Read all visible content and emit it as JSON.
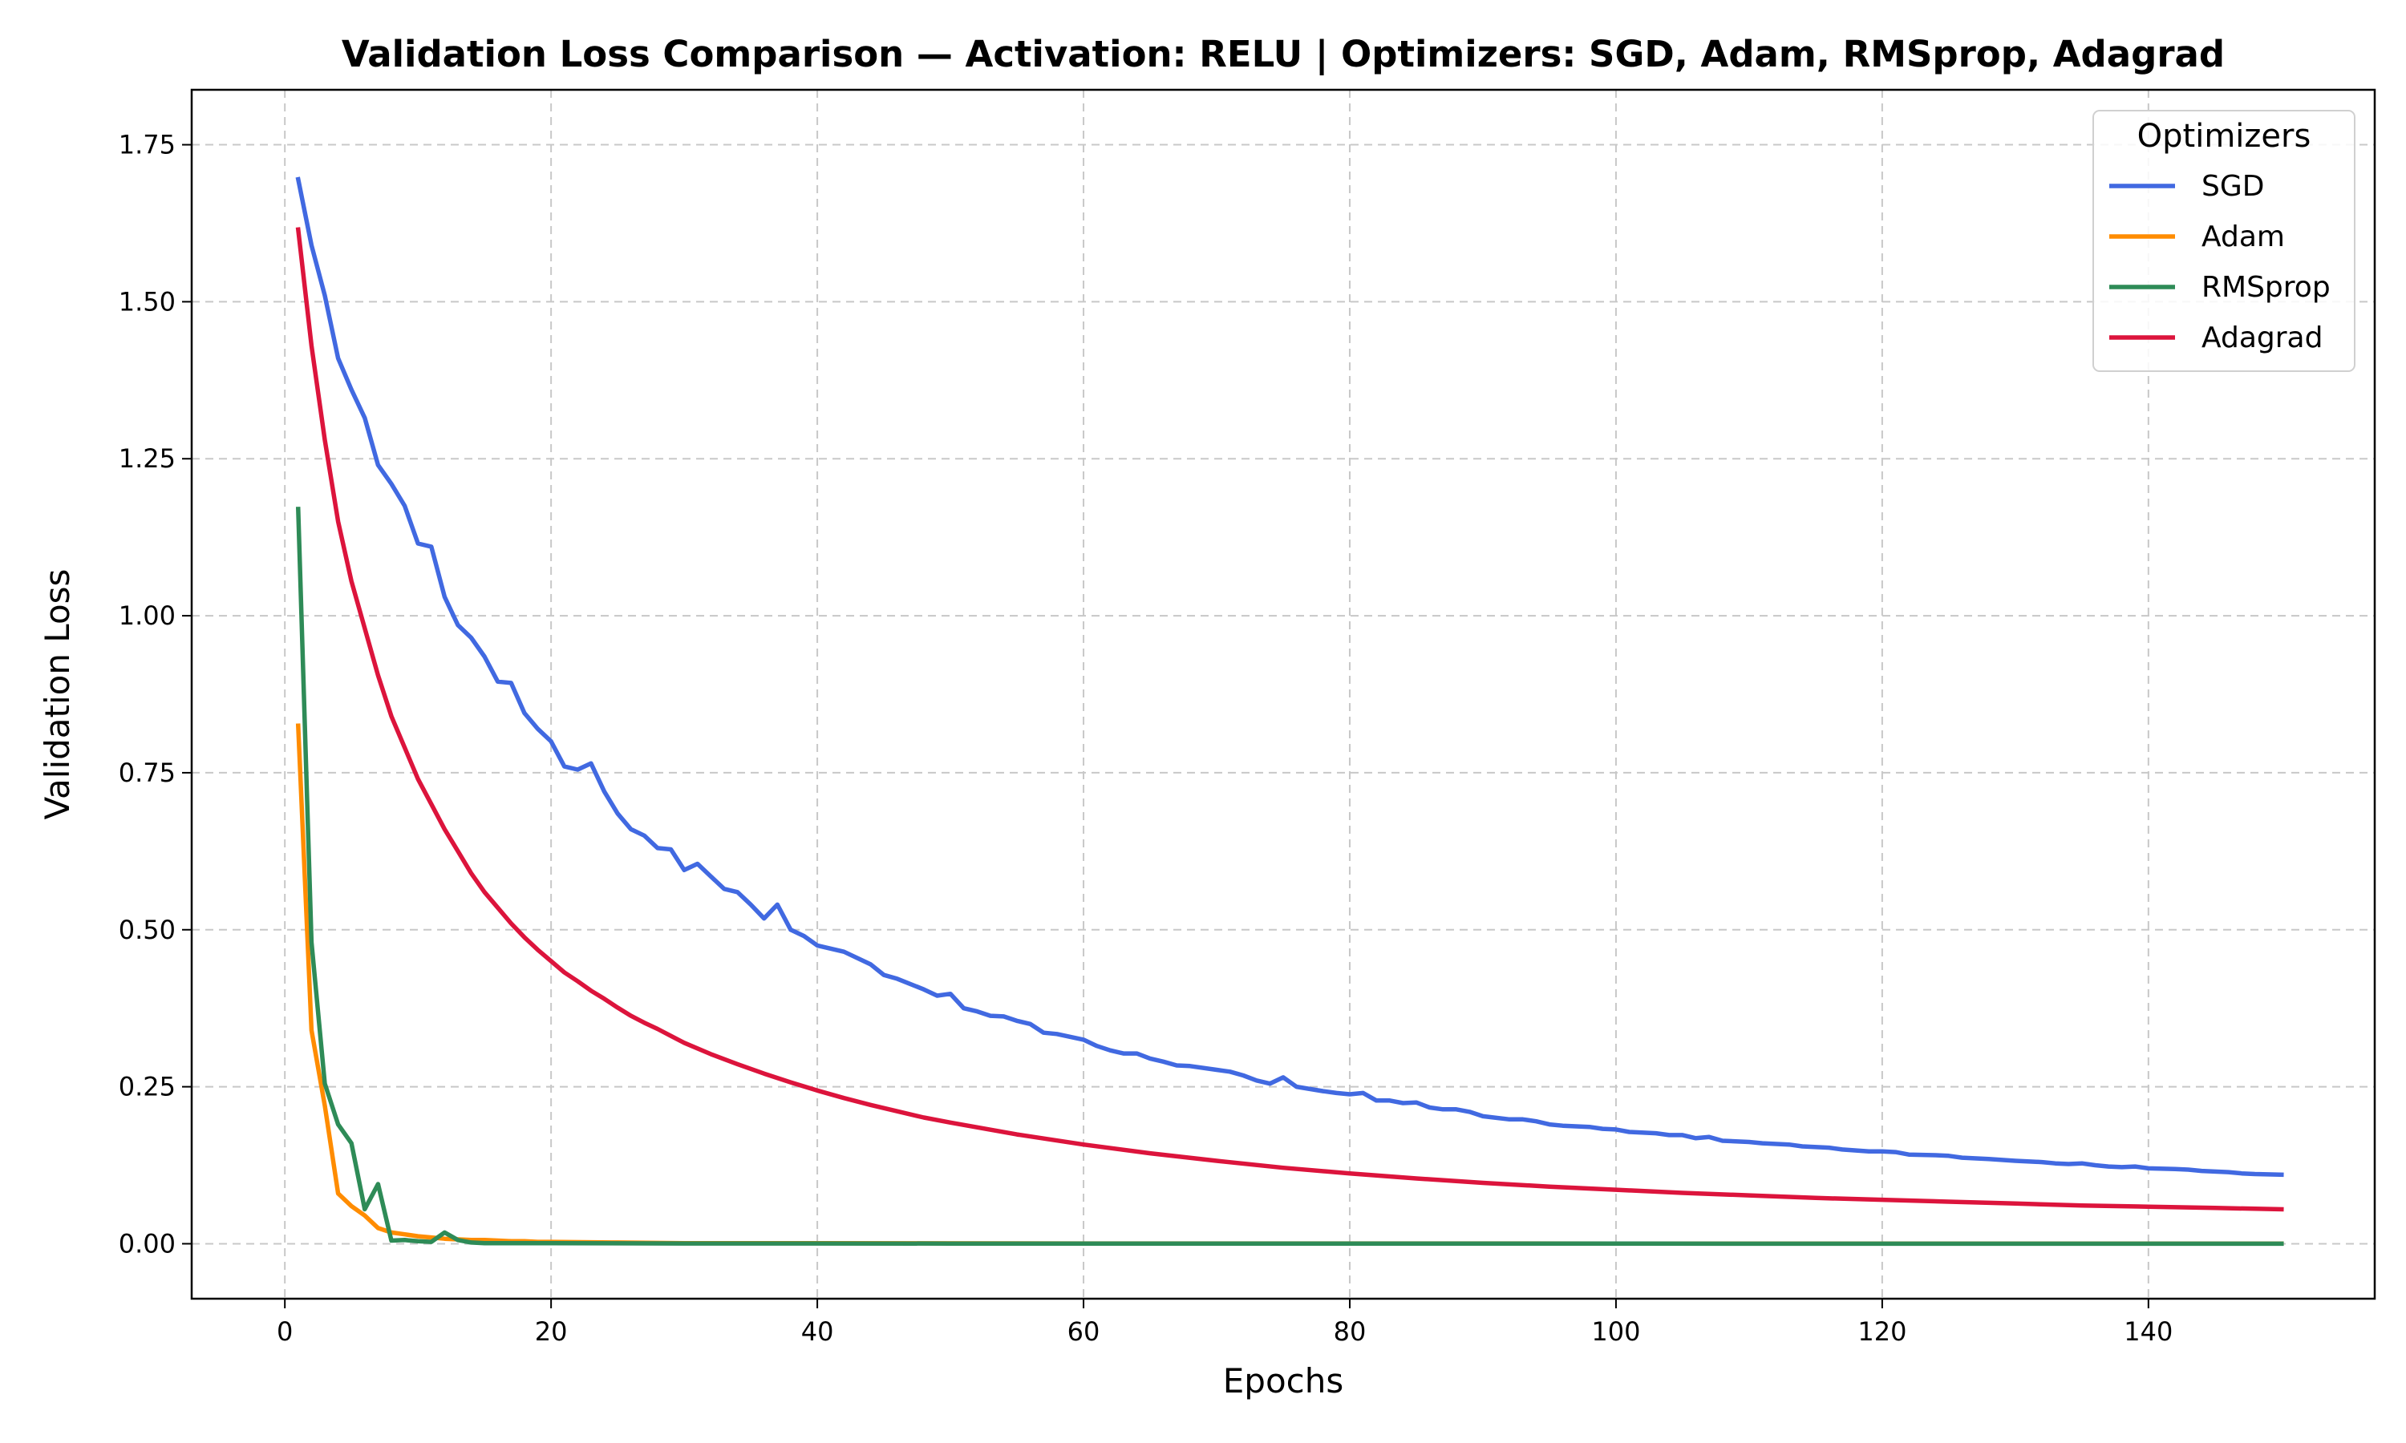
{
  "chart_data": {
    "type": "line",
    "title": "Validation Loss Comparison — Activation: RELU | Optimizers: SGD, Adam, RMSprop, Adagrad",
    "xlabel": "Epochs",
    "ylabel": "Validation Loss",
    "xlim": [
      -7,
      157
    ],
    "ylim": [
      -0.0875,
      1.8375
    ],
    "xticks": [
      0,
      20,
      40,
      60,
      80,
      100,
      120,
      140
    ],
    "yticks": [
      0.0,
      0.25,
      0.5,
      0.75,
      1.0,
      1.25,
      1.5,
      1.75
    ],
    "ytick_labels": [
      "0.00",
      "0.25",
      "0.50",
      "0.75",
      "1.00",
      "1.25",
      "1.50",
      "1.75"
    ],
    "grid": true,
    "legend": {
      "title": "Optimizers",
      "placement": "top-right"
    },
    "series": [
      {
        "name": "SGD",
        "color": "#4169e1",
        "points": [
          [
            1,
            1.695
          ],
          [
            2,
            1.59
          ],
          [
            3,
            1.51
          ],
          [
            4,
            1.41
          ],
          [
            5,
            1.36
          ],
          [
            6,
            1.315
          ],
          [
            7,
            1.24
          ],
          [
            8,
            1.21
          ],
          [
            9,
            1.175
          ],
          [
            10,
            1.115
          ],
          [
            11,
            1.11
          ],
          [
            12,
            1.03
          ],
          [
            13,
            0.985
          ],
          [
            14,
            0.965
          ],
          [
            15,
            0.935
          ],
          [
            16,
            0.895
          ],
          [
            17,
            0.893
          ],
          [
            18,
            0.845
          ],
          [
            19,
            0.82
          ],
          [
            20,
            0.8
          ],
          [
            21,
            0.76
          ],
          [
            22,
            0.755
          ],
          [
            23,
            0.765
          ],
          [
            24,
            0.72
          ],
          [
            25,
            0.685
          ],
          [
            26,
            0.66
          ],
          [
            27,
            0.65
          ],
          [
            28,
            0.63
          ],
          [
            29,
            0.628
          ],
          [
            30,
            0.595
          ],
          [
            31,
            0.605
          ],
          [
            32,
            0.585
          ],
          [
            33,
            0.565
          ],
          [
            34,
            0.56
          ],
          [
            35,
            0.54
          ],
          [
            36,
            0.518
          ],
          [
            37,
            0.54
          ],
          [
            38,
            0.5
          ],
          [
            39,
            0.49
          ],
          [
            40,
            0.475
          ],
          [
            42,
            0.465
          ],
          [
            44,
            0.445
          ],
          [
            45,
            0.428
          ],
          [
            46,
            0.422
          ],
          [
            48,
            0.405
          ],
          [
            49,
            0.395
          ],
          [
            50,
            0.398
          ],
          [
            51,
            0.375
          ],
          [
            52,
            0.37
          ],
          [
            53,
            0.363
          ],
          [
            54,
            0.362
          ],
          [
            55,
            0.355
          ],
          [
            56,
            0.35
          ],
          [
            57,
            0.336
          ],
          [
            58,
            0.334
          ],
          [
            60,
            0.325
          ],
          [
            61,
            0.315
          ],
          [
            62,
            0.308
          ],
          [
            63,
            0.303
          ],
          [
            64,
            0.303
          ],
          [
            65,
            0.295
          ],
          [
            66,
            0.29
          ],
          [
            67,
            0.284
          ],
          [
            68,
            0.283
          ],
          [
            70,
            0.277
          ],
          [
            71,
            0.274
          ],
          [
            72,
            0.268
          ],
          [
            73,
            0.26
          ],
          [
            74,
            0.255
          ],
          [
            75,
            0.265
          ],
          [
            76,
            0.25
          ],
          [
            78,
            0.243
          ],
          [
            79,
            0.24
          ],
          [
            80,
            0.238
          ],
          [
            81,
            0.24
          ],
          [
            82,
            0.228
          ],
          [
            83,
            0.228
          ],
          [
            84,
            0.224
          ],
          [
            85,
            0.225
          ],
          [
            86,
            0.217
          ],
          [
            87,
            0.214
          ],
          [
            88,
            0.214
          ],
          [
            89,
            0.21
          ],
          [
            90,
            0.203
          ],
          [
            92,
            0.198
          ],
          [
            93,
            0.198
          ],
          [
            94,
            0.195
          ],
          [
            95,
            0.19
          ],
          [
            96,
            0.188
          ],
          [
            98,
            0.186
          ],
          [
            99,
            0.183
          ],
          [
            100,
            0.182
          ],
          [
            101,
            0.178
          ],
          [
            103,
            0.176
          ],
          [
            104,
            0.173
          ],
          [
            105,
            0.173
          ],
          [
            106,
            0.168
          ],
          [
            107,
            0.17
          ],
          [
            108,
            0.164
          ],
          [
            110,
            0.162
          ],
          [
            111,
            0.16
          ],
          [
            113,
            0.158
          ],
          [
            114,
            0.155
          ],
          [
            116,
            0.153
          ],
          [
            117,
            0.15
          ],
          [
            119,
            0.147
          ],
          [
            120,
            0.147
          ],
          [
            121,
            0.146
          ],
          [
            122,
            0.142
          ],
          [
            124,
            0.141
          ],
          [
            125,
            0.14
          ],
          [
            126,
            0.137
          ],
          [
            128,
            0.135
          ],
          [
            130,
            0.132
          ],
          [
            132,
            0.13
          ],
          [
            133,
            0.128
          ],
          [
            134,
            0.127
          ],
          [
            135,
            0.128
          ],
          [
            136,
            0.125
          ],
          [
            137,
            0.123
          ],
          [
            138,
            0.122
          ],
          [
            139,
            0.123
          ],
          [
            140,
            0.12
          ],
          [
            142,
            0.119
          ],
          [
            143,
            0.118
          ],
          [
            144,
            0.116
          ],
          [
            146,
            0.114
          ],
          [
            147,
            0.112
          ],
          [
            148,
            0.111
          ],
          [
            150,
            0.11
          ]
        ]
      },
      {
        "name": "Adam",
        "color": "#ff8c00",
        "points": [
          [
            1,
            0.825
          ],
          [
            2,
            0.34
          ],
          [
            3,
            0.22
          ],
          [
            4,
            0.08
          ],
          [
            5,
            0.06
          ],
          [
            6,
            0.045
          ],
          [
            7,
            0.025
          ],
          [
            8,
            0.018
          ],
          [
            9,
            0.015
          ],
          [
            10,
            0.012
          ],
          [
            11,
            0.01
          ],
          [
            12,
            0.008
          ],
          [
            13,
            0.007
          ],
          [
            14,
            0.006
          ],
          [
            15,
            0.006
          ],
          [
            16,
            0.005
          ],
          [
            17,
            0.004
          ],
          [
            18,
            0.004
          ],
          [
            19,
            0.003
          ],
          [
            20,
            0.003
          ],
          [
            25,
            0.002
          ],
          [
            30,
            0.001
          ],
          [
            40,
            0.001
          ],
          [
            60,
            0.0005
          ],
          [
            100,
            0.0003
          ],
          [
            150,
            0.0002
          ]
        ]
      },
      {
        "name": "RMSprop",
        "color": "#2e8b57",
        "points": [
          [
            1,
            1.17
          ],
          [
            2,
            0.48
          ],
          [
            3,
            0.255
          ],
          [
            4,
            0.19
          ],
          [
            5,
            0.16
          ],
          [
            6,
            0.055
          ],
          [
            7,
            0.095
          ],
          [
            8,
            0.005
          ],
          [
            9,
            0.006
          ],
          [
            10,
            0.004
          ],
          [
            11,
            0.003
          ],
          [
            12,
            0.018
          ],
          [
            13,
            0.006
          ],
          [
            14,
            0.002
          ],
          [
            15,
            0.001
          ],
          [
            16,
            0.001
          ],
          [
            20,
            0.0008
          ],
          [
            30,
            0.0005
          ],
          [
            50,
            0.0003
          ],
          [
            100,
            0.0002
          ],
          [
            150,
            0.0001
          ]
        ]
      },
      {
        "name": "Adagrad",
        "color": "#dc143c",
        "points": [
          [
            1,
            1.615
          ],
          [
            2,
            1.43
          ],
          [
            3,
            1.28
          ],
          [
            4,
            1.15
          ],
          [
            5,
            1.055
          ],
          [
            6,
            0.98
          ],
          [
            7,
            0.905
          ],
          [
            8,
            0.84
          ],
          [
            9,
            0.79
          ],
          [
            10,
            0.74
          ],
          [
            11,
            0.7
          ],
          [
            12,
            0.66
          ],
          [
            13,
            0.625
          ],
          [
            14,
            0.59
          ],
          [
            15,
            0.56
          ],
          [
            16,
            0.535
          ],
          [
            17,
            0.51
          ],
          [
            18,
            0.488
          ],
          [
            19,
            0.468
          ],
          [
            20,
            0.45
          ],
          [
            21,
            0.432
          ],
          [
            22,
            0.418
          ],
          [
            23,
            0.403
          ],
          [
            24,
            0.39
          ],
          [
            25,
            0.376
          ],
          [
            26,
            0.363
          ],
          [
            27,
            0.352
          ],
          [
            28,
            0.342
          ],
          [
            29,
            0.331
          ],
          [
            30,
            0.32
          ],
          [
            32,
            0.302
          ],
          [
            34,
            0.286
          ],
          [
            36,
            0.271
          ],
          [
            38,
            0.257
          ],
          [
            40,
            0.244
          ],
          [
            42,
            0.232
          ],
          [
            44,
            0.221
          ],
          [
            46,
            0.211
          ],
          [
            48,
            0.201
          ],
          [
            50,
            0.193
          ],
          [
            55,
            0.174
          ],
          [
            60,
            0.158
          ],
          [
            65,
            0.144
          ],
          [
            70,
            0.132
          ],
          [
            75,
            0.121
          ],
          [
            80,
            0.112
          ],
          [
            85,
            0.104
          ],
          [
            90,
            0.097
          ],
          [
            95,
            0.091
          ],
          [
            100,
            0.086
          ],
          [
            105,
            0.081
          ],
          [
            110,
            0.077
          ],
          [
            115,
            0.073
          ],
          [
            120,
            0.07
          ],
          [
            125,
            0.067
          ],
          [
            130,
            0.064
          ],
          [
            135,
            0.061
          ],
          [
            140,
            0.059
          ],
          [
            145,
            0.057
          ],
          [
            150,
            0.055
          ]
        ]
      }
    ]
  }
}
